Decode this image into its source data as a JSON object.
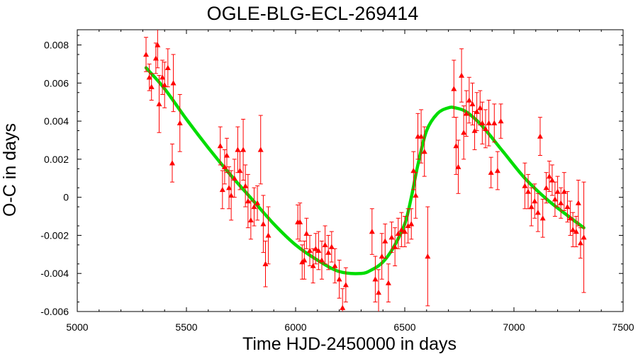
{
  "chart_data": {
    "type": "scatter",
    "title": "OGLE-BLG-ECL-269414",
    "xlabel": "Time HJD-2450000 in days",
    "ylabel": "O-C in days",
    "xlim": [
      5000,
      7500
    ],
    "ylim": [
      -0.006,
      0.0088
    ],
    "x_ticks": [
      5000,
      5500,
      6000,
      6500,
      7000,
      7500
    ],
    "x_tick_labels": [
      "5000",
      "5500",
      "6000",
      "6500",
      "7000",
      "7500"
    ],
    "y_ticks": [
      -0.006,
      -0.004,
      -0.002,
      0,
      0.002,
      0.004,
      0.006,
      0.008
    ],
    "y_tick_labels": [
      "-0.006",
      "-0.004",
      "-0.002",
      "0",
      "0.002",
      "0.004",
      "0.006",
      "0.008"
    ],
    "grid": false,
    "colors": {
      "points": "#ff0000",
      "model": "#00dd00"
    },
    "series": [
      {
        "type": "scatter_errorbar",
        "marker": "triangle",
        "points": [
          {
            "x": 5315,
            "y": 0.0075,
            "err": 0.0009
          },
          {
            "x": 5330,
            "y": 0.0063,
            "err": 0.0007
          },
          {
            "x": 5340,
            "y": 0.0058,
            "err": 0.0007
          },
          {
            "x": 5360,
            "y": 0.0073,
            "err": 0.0008
          },
          {
            "x": 5368,
            "y": 0.008,
            "err": 0.0012
          },
          {
            "x": 5375,
            "y": 0.0049,
            "err": 0.0015
          },
          {
            "x": 5390,
            "y": 0.0063,
            "err": 0.0009
          },
          {
            "x": 5400,
            "y": 0.0059,
            "err": 0.0012
          },
          {
            "x": 5415,
            "y": 0.0068,
            "err": 0.001
          },
          {
            "x": 5435,
            "y": 0.0018,
            "err": 0.001
          },
          {
            "x": 5440,
            "y": 0.006,
            "err": 0.0015
          },
          {
            "x": 5470,
            "y": 0.0039,
            "err": 0.0015
          },
          {
            "x": 5655,
            "y": 0.0027,
            "err": 0.001
          },
          {
            "x": 5665,
            "y": 0.0004,
            "err": 0.001
          },
          {
            "x": 5675,
            "y": 0.0016,
            "err": 0.0009
          },
          {
            "x": 5685,
            "y": 0.0022,
            "err": 0.0009
          },
          {
            "x": 5695,
            "y": 0.0005,
            "err": 0.0011
          },
          {
            "x": 5705,
            "y": 0.0001,
            "err": 0.0013
          },
          {
            "x": 5720,
            "y": 0.001,
            "err": 0.001
          },
          {
            "x": 5735,
            "y": 0.0025,
            "err": 0.0012
          },
          {
            "x": 5745,
            "y": 0.0014,
            "err": 0.001
          },
          {
            "x": 5760,
            "y": 0.0025,
            "err": 0.0016
          },
          {
            "x": 5770,
            "y": 0.0006,
            "err": 0.0011
          },
          {
            "x": 5782,
            "y": -0.0002,
            "err": 0.0014
          },
          {
            "x": 5795,
            "y": -0.0012,
            "err": 0.001
          },
          {
            "x": 5810,
            "y": -0.0005,
            "err": 0.001
          },
          {
            "x": 5825,
            "y": -0.0003,
            "err": 0.0009
          },
          {
            "x": 5840,
            "y": 0.0025,
            "err": 0.0018
          },
          {
            "x": 5852,
            "y": -0.0014,
            "err": 0.0015
          },
          {
            "x": 5862,
            "y": -0.0035,
            "err": 0.0012
          },
          {
            "x": 5875,
            "y": -0.002,
            "err": 0.0015
          },
          {
            "x": 6010,
            "y": -0.0013,
            "err": 0.0009
          },
          {
            "x": 6020,
            "y": -0.0013,
            "err": 0.001
          },
          {
            "x": 6030,
            "y": -0.0034,
            "err": 0.0009
          },
          {
            "x": 6040,
            "y": -0.0033,
            "err": 0.001
          },
          {
            "x": 6050,
            "y": -0.0019,
            "err": 0.0008
          },
          {
            "x": 6065,
            "y": -0.0028,
            "err": 0.0008
          },
          {
            "x": 6080,
            "y": -0.0036,
            "err": 0.0009
          },
          {
            "x": 6092,
            "y": -0.0027,
            "err": 0.0008
          },
          {
            "x": 6105,
            "y": -0.0028,
            "err": 0.001
          },
          {
            "x": 6120,
            "y": -0.0033,
            "err": 0.001
          },
          {
            "x": 6135,
            "y": -0.0025,
            "err": 0.001
          },
          {
            "x": 6150,
            "y": -0.0029,
            "err": 0.0009
          },
          {
            "x": 6165,
            "y": -0.0026,
            "err": 0.0008
          },
          {
            "x": 6180,
            "y": -0.0036,
            "err": 0.0009
          },
          {
            "x": 6200,
            "y": -0.0043,
            "err": 0.001
          },
          {
            "x": 6215,
            "y": -0.0058,
            "err": 0.001
          },
          {
            "x": 6230,
            "y": -0.0046,
            "err": 0.0009
          },
          {
            "x": 6350,
            "y": -0.0018,
            "err": 0.0012
          },
          {
            "x": 6365,
            "y": -0.0043,
            "err": 0.0012
          },
          {
            "x": 6380,
            "y": -0.005,
            "err": 0.0012
          },
          {
            "x": 6395,
            "y": -0.0031,
            "err": 0.0012
          },
          {
            "x": 6410,
            "y": -0.0023,
            "err": 0.0009
          },
          {
            "x": 6425,
            "y": -0.0045,
            "err": 0.001
          },
          {
            "x": 6440,
            "y": -0.0021,
            "err": 0.0008
          },
          {
            "x": 6455,
            "y": -0.0026,
            "err": 0.001
          },
          {
            "x": 6470,
            "y": -0.0019,
            "err": 0.0008
          },
          {
            "x": 6485,
            "y": -0.0017,
            "err": 0.0009
          },
          {
            "x": 6500,
            "y": -0.0018,
            "err": 0.0008
          },
          {
            "x": 6515,
            "y": -0.0015,
            "err": 0.0009
          },
          {
            "x": 6530,
            "y": -0.0014,
            "err": 0.0008
          },
          {
            "x": 6540,
            "y": 0.0014,
            "err": 0.001
          },
          {
            "x": 6550,
            "y": 0.0001,
            "err": 0.0012
          },
          {
            "x": 6560,
            "y": 0.0032,
            "err": 0.0012
          },
          {
            "x": 6575,
            "y": 0.0032,
            "err": 0.0014
          },
          {
            "x": 6590,
            "y": 0.0024,
            "err": 0.0013
          },
          {
            "x": 6605,
            "y": -0.0031,
            "err": 0.0026
          },
          {
            "x": 6725,
            "y": 0.0057,
            "err": 0.0015
          },
          {
            "x": 6735,
            "y": 0.0027,
            "err": 0.0015
          },
          {
            "x": 6745,
            "y": 0.0016,
            "err": 0.0014
          },
          {
            "x": 6760,
            "y": 0.0064,
            "err": 0.0014
          },
          {
            "x": 6770,
            "y": 0.0034,
            "err": 0.0014
          },
          {
            "x": 6782,
            "y": 0.0044,
            "err": 0.0012
          },
          {
            "x": 6795,
            "y": 0.0051,
            "err": 0.0012
          },
          {
            "x": 6810,
            "y": 0.0049,
            "err": 0.0011
          },
          {
            "x": 6820,
            "y": 0.0035,
            "err": 0.001
          },
          {
            "x": 6830,
            "y": 0.0045,
            "err": 0.001
          },
          {
            "x": 6845,
            "y": 0.0047,
            "err": 0.0009
          },
          {
            "x": 6855,
            "y": 0.0039,
            "err": 0.0011
          },
          {
            "x": 6870,
            "y": 0.0036,
            "err": 0.001
          },
          {
            "x": 6885,
            "y": 0.0039,
            "err": 0.0012
          },
          {
            "x": 6895,
            "y": 0.0013,
            "err": 0.0008
          },
          {
            "x": 6910,
            "y": 0.0039,
            "err": 0.001
          },
          {
            "x": 6925,
            "y": 0.0014,
            "err": 0.001
          },
          {
            "x": 6940,
            "y": 0.004,
            "err": 0.0009
          },
          {
            "x": 7050,
            "y": 0.0006,
            "err": 0.0012
          },
          {
            "x": 7065,
            "y": 0.0003,
            "err": 0.0009
          },
          {
            "x": 7080,
            "y": -0.0005,
            "err": 0.001
          },
          {
            "x": 7095,
            "y": -0.0002,
            "err": 0.0009
          },
          {
            "x": 7110,
            "y": -0.0008,
            "err": 0.001
          },
          {
            "x": 7120,
            "y": 0.0032,
            "err": 0.001
          },
          {
            "x": 7132,
            "y": -0.0011,
            "err": 0.001
          },
          {
            "x": 7148,
            "y": 0.0005,
            "err": 0.0008
          },
          {
            "x": 7162,
            "y": 0.0011,
            "err": 0.0008
          },
          {
            "x": 7175,
            "y": 0.0009,
            "err": 0.0008
          },
          {
            "x": 7188,
            "y": -0.0001,
            "err": 0.0009
          },
          {
            "x": 7200,
            "y": 0.0003,
            "err": 0.0008
          },
          {
            "x": 7215,
            "y": -0.0003,
            "err": 0.0008
          },
          {
            "x": 7230,
            "y": 0.0003,
            "err": 0.001
          },
          {
            "x": 7245,
            "y": -0.0005,
            "err": 0.0008
          },
          {
            "x": 7258,
            "y": -0.0011,
            "err": 0.0009
          },
          {
            "x": 7270,
            "y": -0.0017,
            "err": 0.0009
          },
          {
            "x": 7285,
            "y": -0.0018,
            "err": 0.0008
          },
          {
            "x": 7295,
            "y": -0.0003,
            "err": 0.0012
          },
          {
            "x": 7305,
            "y": -0.0024,
            "err": 0.0008
          },
          {
            "x": 7320,
            "y": -0.0021,
            "err": 0.0029
          }
        ]
      },
      {
        "type": "line",
        "x": [
          5315,
          5400,
          5500,
          5600,
          5700,
          5800,
          5900,
          6000,
          6100,
          6200,
          6300,
          6350,
          6400,
          6450,
          6500,
          6530,
          6560,
          6600,
          6650,
          6700,
          6730,
          6780,
          6850,
          6950,
          7050,
          7150,
          7250,
          7320
        ],
        "y": [
          0.0068,
          0.0057,
          0.0041,
          0.0026,
          0.0012,
          -0.0001,
          -0.0014,
          -0.0025,
          -0.0033,
          -0.0039,
          -0.004,
          -0.0038,
          -0.0034,
          -0.0026,
          -0.0014,
          0.0,
          0.0017,
          0.0035,
          0.0044,
          0.0047,
          0.0047,
          0.0045,
          0.0038,
          0.0024,
          0.001,
          -0.0001,
          -0.001,
          -0.0016
        ]
      }
    ]
  }
}
